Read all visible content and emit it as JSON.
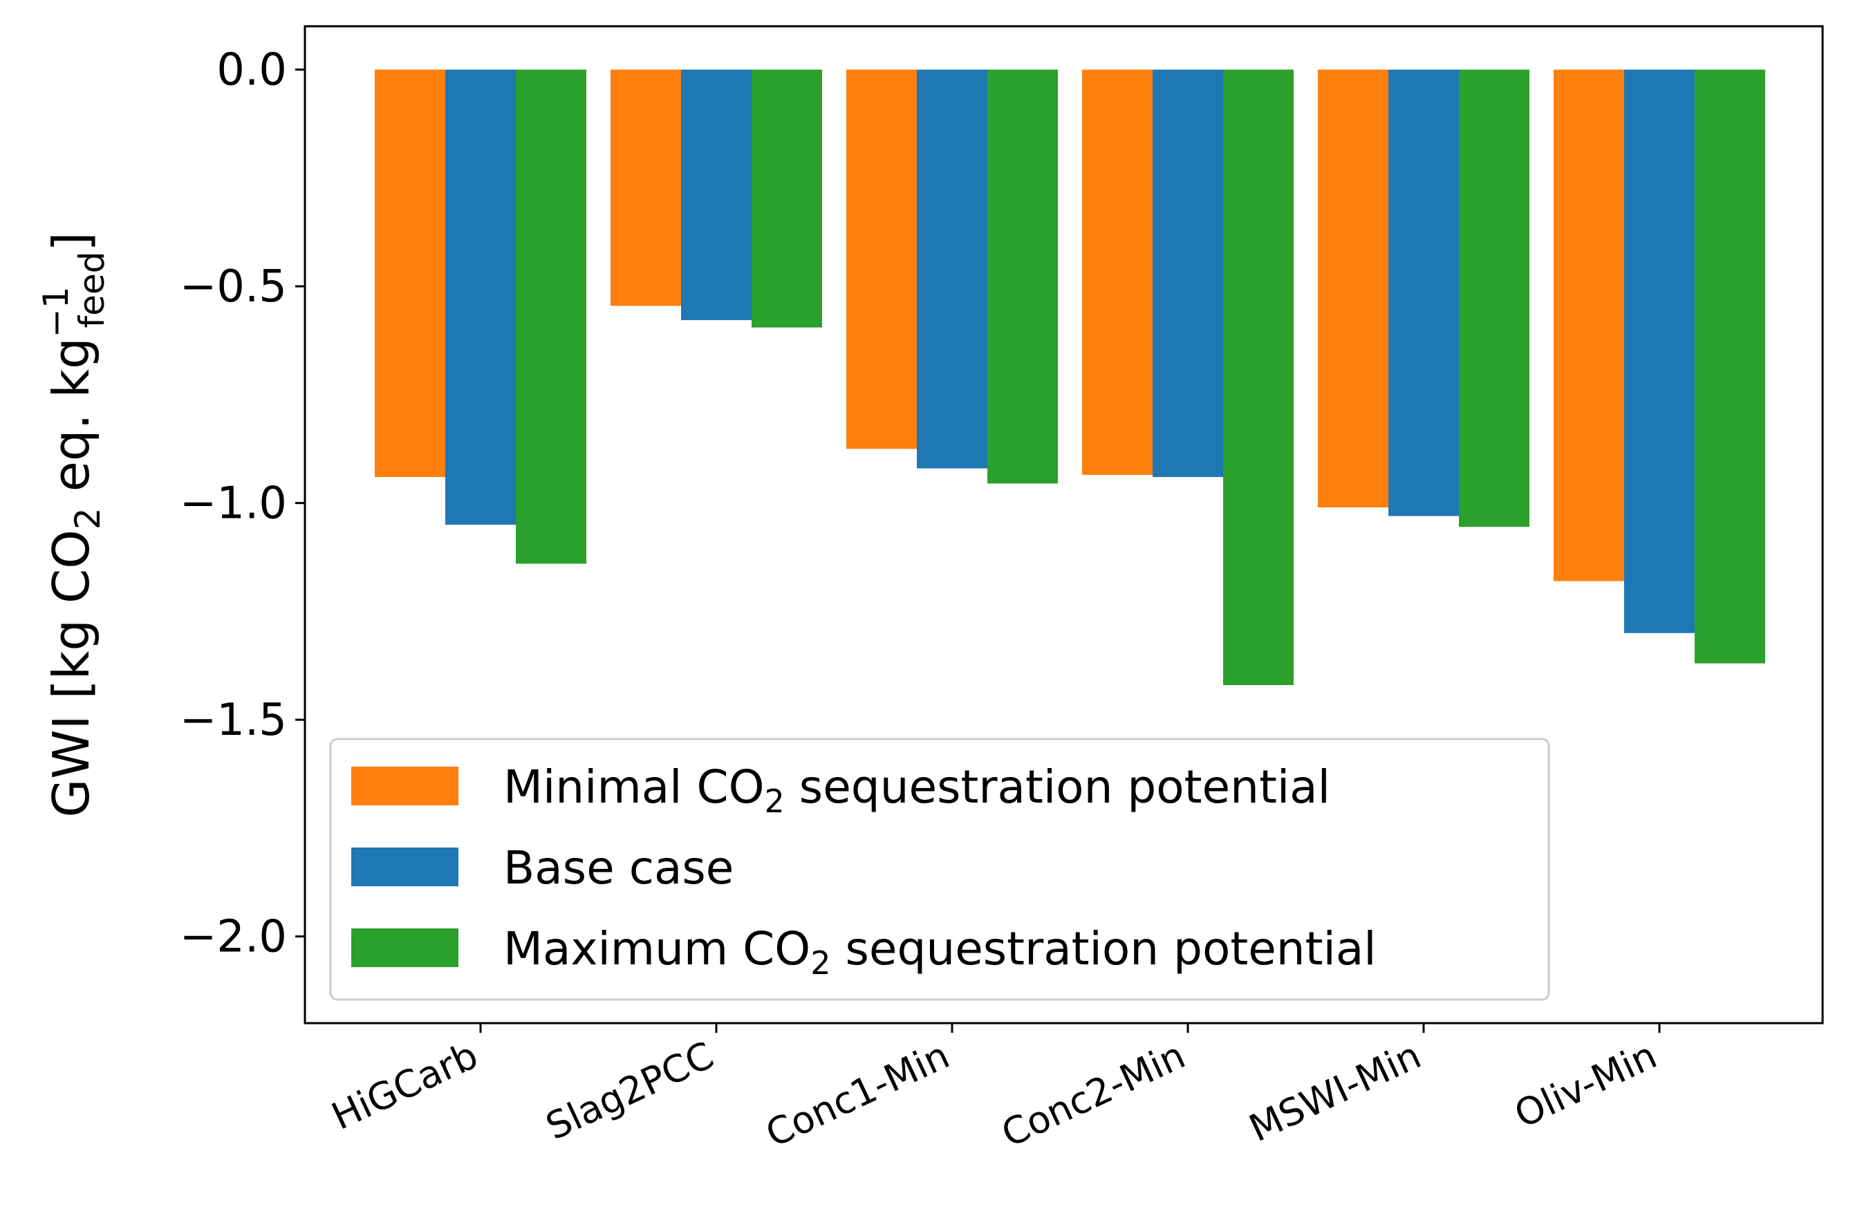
{
  "chart_data": {
    "type": "bar",
    "title": "",
    "xlabel": "",
    "ylabel": {
      "prefix": "GWI [kg CO",
      "sub_co2": "2",
      "middle": " eq. kg",
      "sup": "−1",
      "sub_feed": "feed",
      "suffix": "]"
    },
    "ylim": [
      -2.2,
      0.1
    ],
    "yticks": [
      0.0,
      -0.5,
      -1.0,
      -1.5,
      -2.0
    ],
    "ytick_labels": [
      "0.0",
      "−0.5",
      "−1.0",
      "−1.5",
      "−2.0"
    ],
    "grid": false,
    "legend_position": "lower-left",
    "categories": [
      "HiGCarb",
      "Slag2PCC",
      "Conc1-Min",
      "Conc2-Min",
      "MSWI-Min",
      "Oliv-Min"
    ],
    "series": [
      {
        "name": "Minimal CO2 sequestration potential",
        "legend": {
          "pre": "Minimal CO",
          "sub": "2",
          "post": " sequestration potential"
        },
        "color": "#ff7f0e",
        "values": [
          -0.94,
          -0.545,
          -0.875,
          -0.935,
          -1.01,
          -1.18
        ]
      },
      {
        "name": "Base case",
        "legend": {
          "pre": "Base case",
          "sub": "",
          "post": ""
        },
        "color": "#1f77b4",
        "values": [
          -1.05,
          -0.578,
          -0.92,
          -0.94,
          -1.03,
          -1.3
        ]
      },
      {
        "name": "Maximum CO2 sequestration potential",
        "legend": {
          "pre": "Maximum CO",
          "sub": "2",
          "post": " sequestration potential"
        },
        "color": "#2ca02c",
        "values": [
          -1.14,
          -0.595,
          -0.955,
          -1.42,
          -1.055,
          -1.37
        ]
      }
    ]
  }
}
